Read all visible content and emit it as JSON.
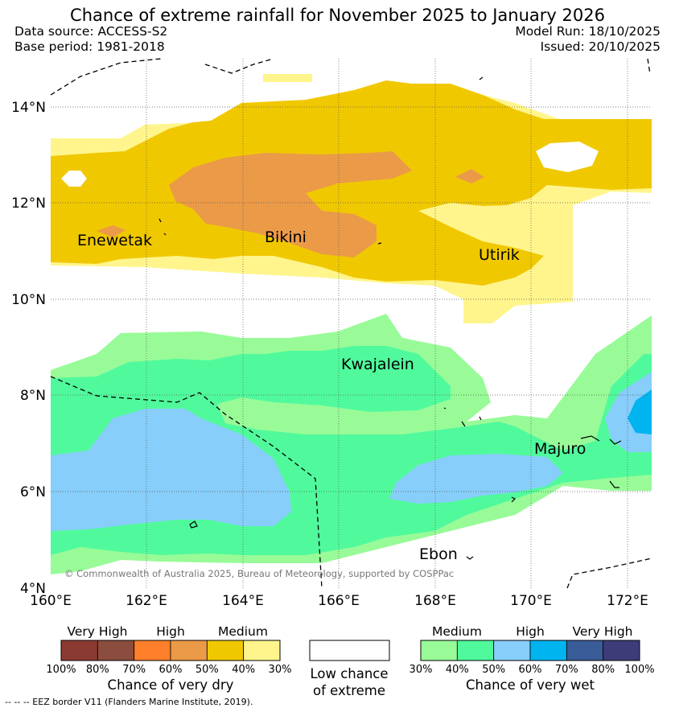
{
  "title": "Chance of extreme rainfall for November 2025 to January 2026",
  "header": {
    "data_source": "Data source: ACCESS-S2",
    "base_period": "Base period: 1981-2018",
    "model_run": "Model Run: 18/10/2025",
    "issued": "Issued: 20/10/2025"
  },
  "map": {
    "lon_ticks": [
      "160°E",
      "162°E",
      "164°E",
      "166°E",
      "168°E",
      "170°E",
      "172°E"
    ],
    "lat_ticks": [
      "14°N",
      "12°N",
      "10°N",
      "8°N",
      "6°N",
      "4°N"
    ],
    "places": [
      "Enewetak",
      "Bikini",
      "Utirik",
      "Kwajalein",
      "Majuro",
      "Ebon"
    ],
    "copyright": "© Commonwealth of Australia 2025, Bureau of Meteorology, supported by COSPPac"
  },
  "legend": {
    "dry": {
      "labels": [
        "Very High",
        "High",
        "Medium"
      ],
      "colors": [
        "#8b3a32",
        "#8b4d3e",
        "#ff7f2a",
        "#eb9a48",
        "#f0c800",
        "#fff58c"
      ],
      "ticks": [
        "100%",
        "80%",
        "70%",
        "60%",
        "50%",
        "40%",
        "30%"
      ],
      "title": "Chance of very dry"
    },
    "low": {
      "color": "#ffffff",
      "line1": "Low chance",
      "line2": "of extreme"
    },
    "wet": {
      "labels": [
        "Medium",
        "High",
        "Very High"
      ],
      "colors": [
        "#98fb98",
        "#50fa9c",
        "#87cefa",
        "#00b4f0",
        "#3a5c98",
        "#3e3c78"
      ],
      "ticks": [
        "30%",
        "40%",
        "50%",
        "60%",
        "70%",
        "80%",
        "100%"
      ],
      "title": "Chance of very wet"
    }
  },
  "footnote": "-- -- -- EEZ border V11 (Flanders Marine Institute, 2019).",
  "colors": {
    "pale_yellow": "#fff58c",
    "gold": "#f0c800",
    "orange": "#eb9a48",
    "light_green": "#98fb98",
    "green": "#50fa9c",
    "light_blue": "#87cefa",
    "blue": "#00b4f0"
  }
}
